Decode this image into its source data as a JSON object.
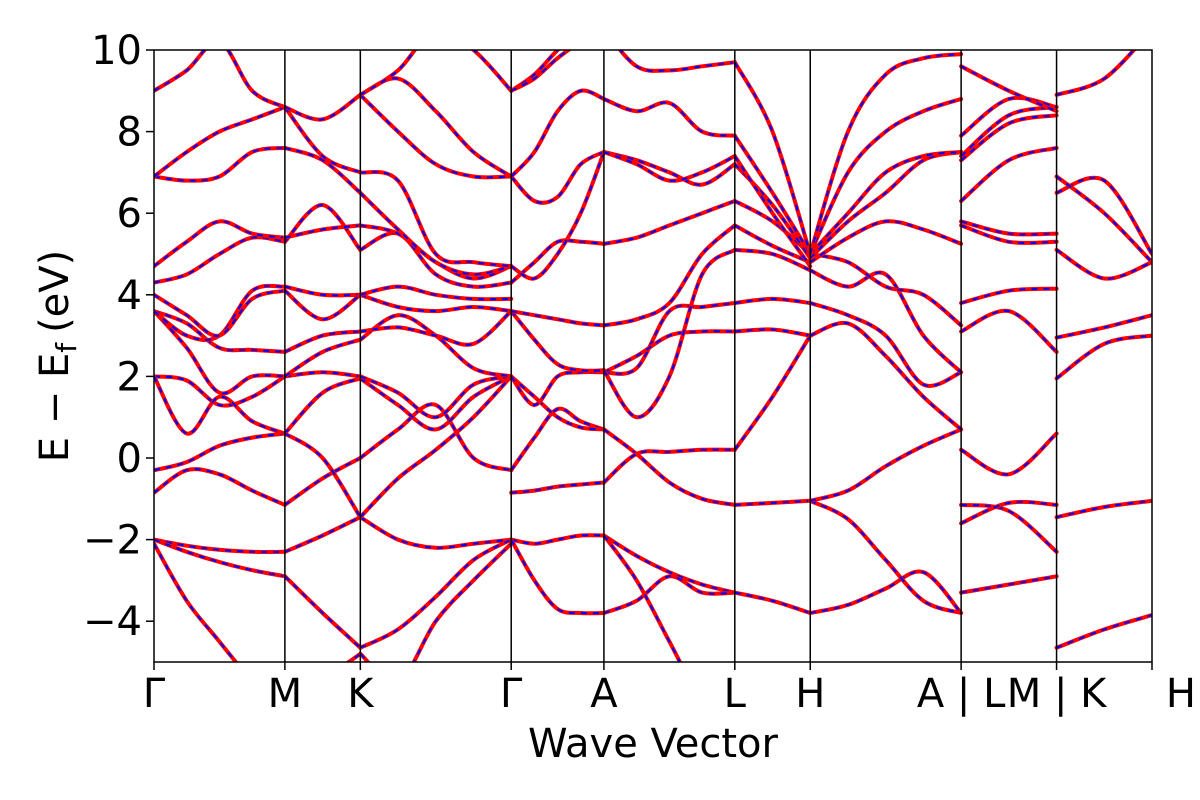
{
  "chart_data": {
    "type": "line",
    "xlabel": "Wave Vector",
    "ylabel": "E − E_f (eV)",
    "ylabel_parts": {
      "main": "E − E",
      "sub": "f",
      "unit": "(eV)"
    },
    "ylim": [
      -5,
      10
    ],
    "xlim": [
      0,
      10.98
    ],
    "yticks": [
      -4,
      -2,
      0,
      2,
      4,
      6,
      8,
      10
    ],
    "ytick_labels": [
      "−4",
      "−2",
      "0",
      "2",
      "4",
      "6",
      "8",
      "10"
    ],
    "high_symmetry_points": [
      {
        "label": "Γ",
        "x": 0.0
      },
      {
        "label": "M",
        "x": 1.44
      },
      {
        "label": "K",
        "x": 2.27
      },
      {
        "label": "Γ",
        "x": 3.93
      },
      {
        "label": "A",
        "x": 4.95
      },
      {
        "label": "L",
        "x": 6.39
      },
      {
        "label": "H",
        "x": 7.22
      },
      {
        "label": "A | L",
        "x": 8.88
      },
      {
        "label": "M | K",
        "x": 9.93
      },
      {
        "label": "H",
        "x": 10.98
      }
    ],
    "grid": false,
    "line_style": {
      "solid_color": "#ff0000",
      "dashed_color": "#0000ff"
    },
    "segments": [
      {
        "x0": 0.0,
        "x1": 1.44,
        "bands": [
          [
            -2.1,
            -3.5,
            -4.5,
            -5.5,
            -6.5
          ],
          [
            -2.0,
            -2.15,
            -2.25,
            -2.3,
            -2.3
          ],
          [
            -2.0,
            -2.3,
            -2.55,
            -2.75,
            -2.9
          ],
          [
            -0.85,
            -0.3,
            -0.4,
            -0.8,
            -1.15
          ],
          [
            -0.3,
            -0.1,
            0.3,
            0.5,
            0.6
          ],
          [
            2.0,
            1.9,
            1.3,
            1.5,
            2.0
          ],
          [
            2.0,
            0.6,
            1.5,
            0.9,
            0.6
          ],
          [
            3.6,
            2.7,
            1.6,
            2.0,
            2.0
          ],
          [
            3.6,
            3.3,
            2.7,
            2.65,
            2.6
          ],
          [
            3.6,
            3.0,
            3.0,
            4.1,
            4.2
          ],
          [
            4.0,
            3.5,
            3.0,
            3.9,
            4.1
          ],
          [
            4.3,
            4.5,
            5.0,
            5.4,
            5.3
          ],
          [
            4.7,
            5.3,
            5.8,
            5.5,
            5.4
          ],
          [
            6.9,
            6.8,
            6.9,
            7.5,
            7.6
          ],
          [
            6.9,
            7.5,
            8.0,
            8.3,
            8.6
          ],
          [
            9.0,
            9.5,
            10.2,
            9.0,
            8.6
          ]
        ]
      },
      {
        "x0": 1.44,
        "x1": 2.27,
        "bands": [
          [
            -6.5,
            -5.5,
            -4.8
          ],
          [
            -2.3,
            -1.9,
            -1.45
          ],
          [
            -2.9,
            -3.8,
            -4.65
          ],
          [
            -1.15,
            -0.5,
            0.0
          ],
          [
            0.6,
            1.6,
            1.95
          ],
          [
            2.0,
            2.1,
            2.0
          ],
          [
            0.6,
            0.0,
            -1.45
          ],
          [
            2.0,
            2.6,
            2.9
          ],
          [
            2.6,
            3.0,
            3.1
          ],
          [
            4.2,
            4.0,
            4.0
          ],
          [
            4.1,
            3.4,
            4.0
          ],
          [
            5.3,
            6.2,
            5.1
          ],
          [
            5.4,
            5.6,
            5.7
          ],
          [
            7.6,
            7.3,
            6.5
          ],
          [
            8.6,
            7.4,
            7.0
          ],
          [
            8.6,
            8.3,
            8.9
          ]
        ]
      },
      {
        "x0": 2.27,
        "x1": 3.93,
        "bands": [
          [
            -4.8,
            -5.5,
            -4.0,
            -3.0,
            -2.1
          ],
          [
            -1.45,
            -2.0,
            -2.2,
            -2.1,
            -2.0
          ],
          [
            -4.65,
            -4.2,
            -3.4,
            -2.5,
            -2.0
          ],
          [
            0.0,
            0.7,
            1.3,
            0.0,
            -0.3
          ],
          [
            1.95,
            1.3,
            0.7,
            1.5,
            2.0
          ],
          [
            2.0,
            1.6,
            1.0,
            1.8,
            2.0
          ],
          [
            -1.45,
            -0.5,
            0.2,
            1.0,
            2.0
          ],
          [
            2.9,
            3.5,
            3.0,
            2.2,
            2.0
          ],
          [
            3.1,
            3.2,
            3.0,
            2.8,
            3.6
          ],
          [
            4.0,
            3.7,
            3.6,
            3.7,
            3.6
          ],
          [
            4.0,
            4.2,
            4.0,
            3.9,
            3.9
          ],
          [
            5.1,
            5.5,
            4.5,
            4.2,
            4.3
          ],
          [
            5.7,
            5.5,
            4.8,
            4.4,
            4.7
          ],
          [
            6.5,
            5.6,
            4.8,
            4.5,
            4.7
          ],
          [
            7.0,
            6.8,
            5.0,
            4.8,
            4.7
          ],
          [
            8.9,
            8.0,
            7.2,
            6.9,
            6.9
          ],
          [
            8.9,
            9.3,
            8.5,
            7.5,
            6.9
          ],
          [
            8.9,
            9.5,
            10.5,
            10.0,
            9.0
          ]
        ]
      },
      {
        "x0": 3.93,
        "x1": 4.95,
        "bands": [
          [
            -2.0,
            -2.1,
            -2.0,
            -1.9,
            -1.9
          ],
          [
            -2.0,
            -3.0,
            -3.7,
            -3.8,
            -3.8
          ],
          [
            -0.3,
            0.5,
            1.2,
            0.9,
            0.7
          ],
          [
            -0.85,
            -0.8,
            -0.7,
            -0.65,
            -0.6
          ],
          [
            2.0,
            1.5,
            1.0,
            0.75,
            0.7
          ],
          [
            2.0,
            1.3,
            2.0,
            2.1,
            2.1
          ],
          [
            3.6,
            2.9,
            2.3,
            2.15,
            2.15
          ],
          [
            3.6,
            3.5,
            3.4,
            3.3,
            3.25
          ],
          [
            4.3,
            4.8,
            5.3,
            5.3,
            5.25
          ],
          [
            4.7,
            4.4,
            5.0,
            6.0,
            7.5
          ],
          [
            6.9,
            6.3,
            6.4,
            7.2,
            7.5
          ],
          [
            6.9,
            7.5,
            8.5,
            9.0,
            8.8
          ],
          [
            9.0,
            9.4,
            10.0,
            10.5,
            10.5
          ],
          [
            9.0,
            9.3,
            9.8,
            10.2,
            10.5
          ]
        ]
      },
      {
        "x0": 4.95,
        "x1": 6.39,
        "bands": [
          [
            -1.9,
            -2.4,
            -2.8,
            -3.1,
            -3.3
          ],
          [
            -3.8,
            -3.5,
            -2.9,
            -3.3,
            -3.3
          ],
          [
            -1.9,
            -3.0,
            -4.5,
            -6.0,
            -7.0
          ],
          [
            0.7,
            0.1,
            -0.6,
            -1.0,
            -1.15
          ],
          [
            -0.6,
            0.1,
            0.15,
            0.2,
            0.2
          ],
          [
            2.1,
            2.2,
            3.6,
            3.7,
            3.8
          ],
          [
            2.1,
            2.5,
            3.0,
            3.1,
            3.1
          ],
          [
            2.15,
            1.0,
            2.0,
            4.5,
            5.1
          ],
          [
            3.25,
            3.4,
            3.8,
            5.0,
            5.7
          ],
          [
            5.25,
            5.4,
            5.7,
            6.0,
            6.3
          ],
          [
            7.5,
            7.3,
            7.0,
            6.7,
            7.2
          ],
          [
            7.5,
            7.2,
            6.8,
            7.0,
            7.4
          ],
          [
            8.8,
            8.5,
            8.7,
            8.0,
            7.9
          ],
          [
            10.5,
            9.6,
            9.5,
            9.6,
            9.7
          ]
        ]
      },
      {
        "x0": 6.39,
        "x1": 7.22,
        "bands": [
          [
            -3.3,
            -3.5,
            -3.8
          ],
          [
            -1.15,
            -1.1,
            -1.05
          ],
          [
            0.2,
            1.5,
            3.0
          ],
          [
            3.8,
            3.9,
            3.8
          ],
          [
            3.1,
            3.15,
            3.0
          ],
          [
            5.1,
            5.0,
            4.6
          ],
          [
            5.7,
            5.2,
            4.8
          ],
          [
            6.3,
            5.8,
            5.0
          ],
          [
            7.2,
            6.2,
            4.9
          ],
          [
            7.4,
            6.0,
            4.7
          ],
          [
            7.9,
            6.5,
            5.0
          ],
          [
            9.7,
            8.0,
            5.0
          ]
        ]
      },
      {
        "x0": 7.22,
        "x1": 8.88,
        "bands": [
          [
            -3.8,
            -3.6,
            -3.2,
            -2.8,
            -3.8
          ],
          [
            -1.05,
            -1.5,
            -2.5,
            -3.5,
            -3.8
          ],
          [
            -1.05,
            -0.8,
            -0.2,
            0.3,
            0.7
          ],
          [
            3.0,
            3.3,
            2.5,
            1.5,
            0.7
          ],
          [
            3.8,
            3.5,
            3.0,
            1.8,
            2.1
          ],
          [
            4.6,
            4.2,
            4.5,
            3.0,
            2.1
          ],
          [
            5.0,
            4.8,
            4.2,
            4.0,
            3.25
          ],
          [
            4.8,
            5.4,
            5.8,
            5.6,
            5.25
          ],
          [
            4.9,
            5.8,
            6.5,
            7.3,
            7.5
          ],
          [
            5.0,
            6.0,
            7.0,
            7.4,
            7.5
          ],
          [
            5.0,
            7.0,
            8.0,
            8.5,
            8.8
          ],
          [
            5.0,
            8.0,
            9.4,
            9.8,
            9.9
          ]
        ]
      },
      {
        "x0": 8.88,
        "x1": 9.93,
        "bands": [
          [
            -3.3,
            -3.1,
            -2.9
          ],
          [
            -1.15,
            -1.3,
            -2.3
          ],
          [
            -1.6,
            -1.1,
            -1.15
          ],
          [
            0.2,
            -0.4,
            0.6
          ],
          [
            3.1,
            3.6,
            2.6
          ],
          [
            3.8,
            4.1,
            4.15
          ],
          [
            5.7,
            5.3,
            5.3
          ],
          [
            5.8,
            5.5,
            5.5
          ],
          [
            6.3,
            7.3,
            7.6
          ],
          [
            7.3,
            8.2,
            8.4
          ],
          [
            7.4,
            8.4,
            8.6
          ],
          [
            7.9,
            8.8,
            8.6
          ],
          [
            9.6,
            9.0,
            8.5
          ]
        ]
      },
      {
        "x0": 9.93,
        "x1": 10.98,
        "bands": [
          [
            -4.65,
            -4.2,
            -3.85
          ],
          [
            -1.45,
            -1.2,
            -1.05
          ],
          [
            1.95,
            2.8,
            3.0
          ],
          [
            2.95,
            3.2,
            3.5
          ],
          [
            5.1,
            4.4,
            4.8
          ],
          [
            6.5,
            6.8,
            5.0
          ],
          [
            6.9,
            6.0,
            4.8
          ],
          [
            8.9,
            9.3,
            10.5
          ]
        ]
      }
    ]
  }
}
